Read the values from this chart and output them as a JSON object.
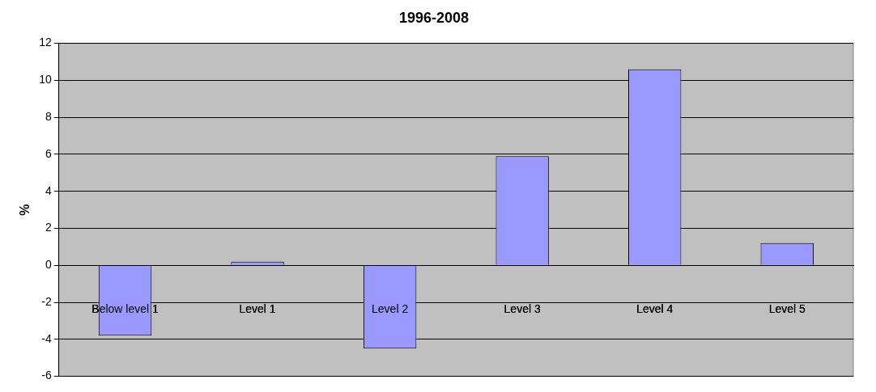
{
  "chart_data": {
    "type": "bar",
    "title": "1996-2008",
    "ylabel": "%",
    "categories": [
      "Below level 1",
      "Level 1",
      "Level 2",
      "Level 3",
      "Level 4",
      "Level 5"
    ],
    "values": [
      -3.8,
      0.2,
      -4.5,
      5.9,
      10.6,
      1.2
    ],
    "color": "#9999ff",
    "ylim": [
      -6,
      12
    ],
    "yticks": [
      -6,
      -4,
      -2,
      0,
      2,
      4,
      6,
      8,
      10,
      12
    ],
    "grid": "y",
    "legend": false
  }
}
